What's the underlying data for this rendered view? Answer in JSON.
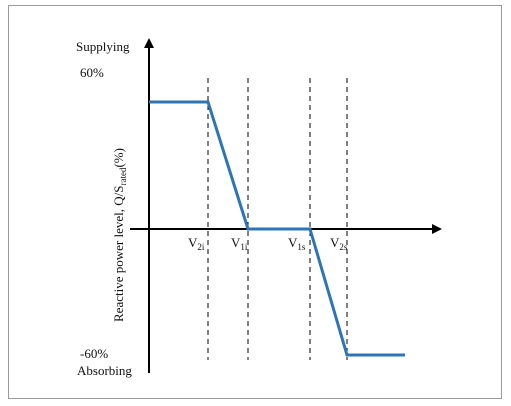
{
  "chart_data": {
    "type": "line",
    "ylabel_main": "Reactive power level, Q/S",
    "ylabel_sub": "rated",
    "ylabel_unit": "(%)",
    "y_top_label": "Supplying",
    "y_bottom_label": "Absorbing",
    "ytick_top": "60%",
    "ytick_bottom": "-60%",
    "ylim": [
      -60,
      60
    ],
    "x_markers": [
      {
        "main": "V",
        "sub": "2i"
      },
      {
        "main": "V",
        "sub": "1i"
      },
      {
        "main": "V",
        "sub": "1s"
      },
      {
        "main": "V",
        "sub": "2s"
      }
    ],
    "series": [
      {
        "points": [
          [
            0,
            60
          ],
          [
            1,
            60
          ],
          [
            2,
            0
          ],
          [
            3,
            0
          ],
          [
            4,
            -60
          ],
          [
            5,
            -60
          ]
        ]
      }
    ],
    "line_color": "#2e75b6",
    "grid": false
  }
}
